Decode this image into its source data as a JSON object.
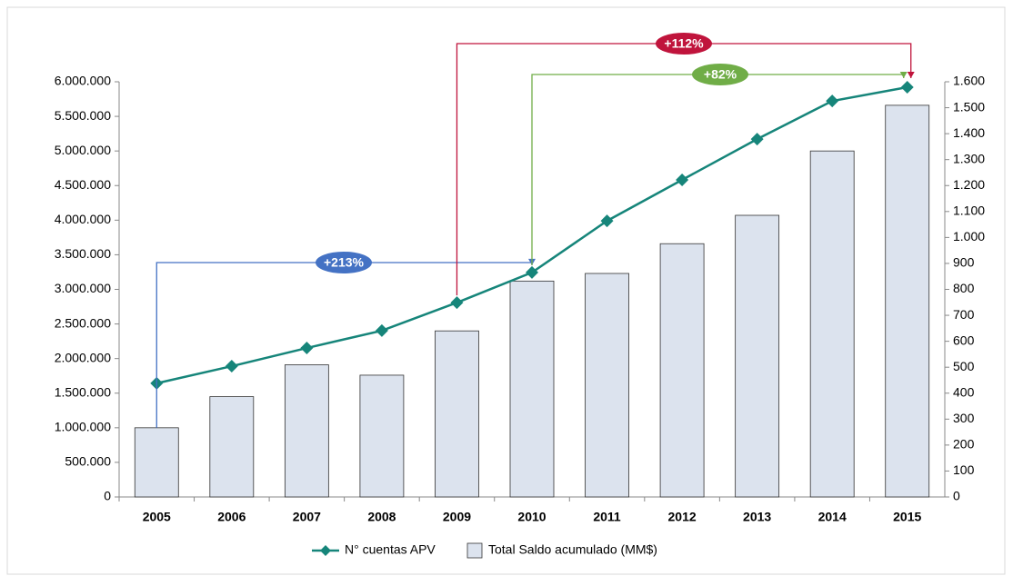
{
  "chart_data": {
    "type": "bar_line",
    "categories": [
      "2005",
      "2006",
      "2007",
      "2008",
      "2009",
      "2010",
      "2011",
      "2012",
      "2013",
      "2014",
      "2015"
    ],
    "series": [
      {
        "name": "Total Saldo acumulado (MM$)",
        "type": "bar",
        "color": "#dce3ee",
        "axis": "y",
        "values": [
          1000000,
          1450000,
          1910000,
          1760000,
          2400000,
          3120000,
          3230000,
          3660000,
          4070000,
          5000000,
          5660000
        ]
      },
      {
        "name": "N° cuentas APV",
        "type": "line",
        "color": "#16857a",
        "axis": "y2",
        "values": [
          438,
          504,
          574,
          641,
          749,
          865,
          1064,
          1222,
          1379,
          1526,
          1579
        ]
      }
    ],
    "ylim": [
      0,
      6000000
    ],
    "yticks": [
      0,
      {
        "value": 500000,
        "label": "500.000"
      },
      {
        "value": 1000000,
        "label": "1.000.000"
      },
      {
        "value": 1500000,
        "label": "1.500.000"
      },
      {
        "value": 2000000,
        "label": "2.000.000"
      },
      {
        "value": 2500000,
        "label": "2.500.000"
      },
      {
        "value": 3000000,
        "label": "3.000.000"
      },
      {
        "value": 3500000,
        "label": "3.500.000"
      },
      {
        "value": 4000000,
        "label": "4.000.000"
      },
      {
        "value": 4500000,
        "label": "4.500.000"
      },
      {
        "value": 5000000,
        "label": "5.000.000"
      },
      {
        "value": 5500000,
        "label": "5.500.000"
      },
      {
        "value": 6000000,
        "label": "6.000.000"
      }
    ],
    "y2lim": [
      0,
      1600
    ],
    "y2ticks": [
      0,
      100,
      200,
      300,
      400,
      500,
      600,
      700,
      800,
      900,
      {
        "value": 1000,
        "label": "1.000"
      },
      {
        "value": 1100,
        "label": "1.100"
      },
      {
        "value": 1200,
        "label": "1.200"
      },
      {
        "value": 1300,
        "label": "1.300"
      },
      {
        "value": 1400,
        "label": "1.400"
      },
      {
        "value": 1500,
        "label": "1.500"
      },
      {
        "value": 1600,
        "label": "1.600"
      }
    ],
    "annotations": [
      {
        "text": "+213%",
        "color": "#4472c4"
      },
      {
        "text": "+112%",
        "color": "#c0143c"
      },
      {
        "text": "+82%",
        "color": "#70ad47"
      }
    ],
    "legend": "bottom"
  }
}
